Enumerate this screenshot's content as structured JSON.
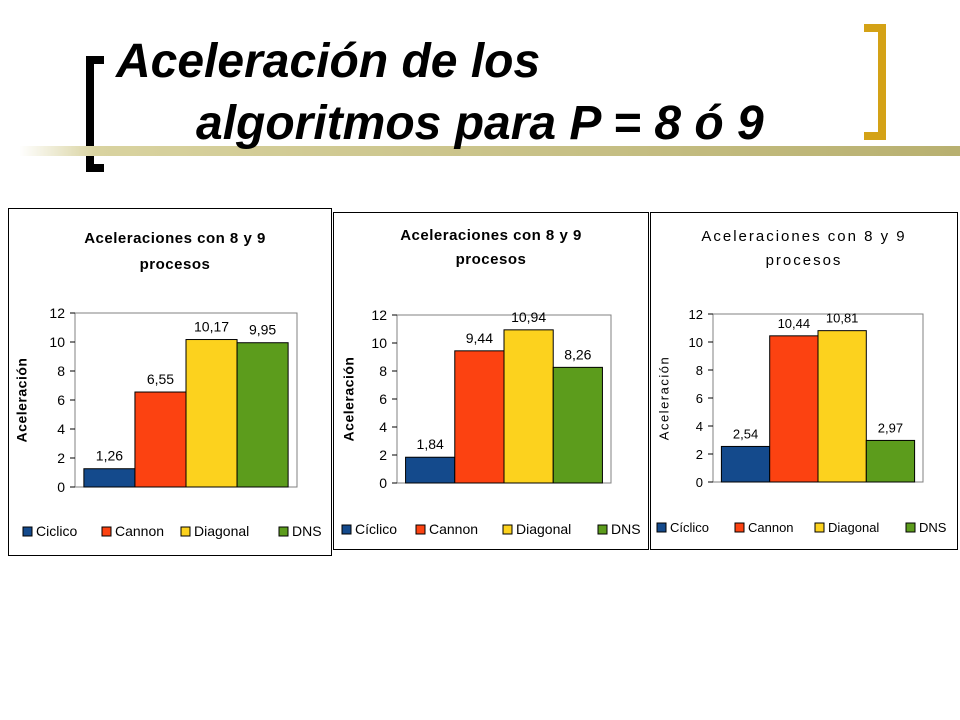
{
  "slide": {
    "title_line1": "Aceleración de los",
    "title_line2": "algoritmos para P = 8 ó 9",
    "accent_color": "#d4a216"
  },
  "series_colors": {
    "Cíclico": "#144a8c",
    "Cannon": "#fc4211",
    "Diagonal": "#fcd21e",
    "DNS": "#5c9c1c"
  },
  "chart_data": [
    {
      "type": "bar",
      "title_lines": [
        "Aceleraciones con 8 y 9",
        "procesos"
      ],
      "ylabel": "Aceleración",
      "xlabel": "",
      "ylim": [
        0,
        12
      ],
      "yticks": [
        "0",
        "2",
        "4",
        "6",
        "8",
        "10",
        "12"
      ],
      "grid": false,
      "legend_position": "bottom",
      "series": [
        {
          "name": "Ciclico",
          "value": 1.26,
          "label": "1,26"
        },
        {
          "name": "Cannon",
          "value": 6.55,
          "label": "6,55"
        },
        {
          "name": "Diagonal",
          "value": 10.17,
          "label": "10,17"
        },
        {
          "name": "DNS",
          "value": 9.95,
          "label": "9,95"
        }
      ]
    },
    {
      "type": "bar",
      "title_lines": [
        "Aceleraciones con 8 y 9",
        "procesos"
      ],
      "ylabel": "Aceleración",
      "xlabel": "",
      "ylim": [
        0,
        12
      ],
      "yticks": [
        "0",
        "2",
        "4",
        "6",
        "8",
        "10",
        "12"
      ],
      "grid": false,
      "legend_position": "bottom",
      "series": [
        {
          "name": "Cíclico",
          "value": 1.84,
          "label": "1,84"
        },
        {
          "name": "Cannon",
          "value": 9.44,
          "label": "9,44"
        },
        {
          "name": "Diagonal",
          "value": 10.94,
          "label": "10,94"
        },
        {
          "name": "DNS",
          "value": 8.26,
          "label": "8,26"
        }
      ]
    },
    {
      "type": "bar",
      "title_lines": [
        "Aceleraciones con 8 y 9",
        "procesos"
      ],
      "ylabel": "Aceleración",
      "xlabel": "",
      "ylim": [
        0,
        12
      ],
      "yticks": [
        "0",
        "2",
        "4",
        "6",
        "8",
        "10",
        "12"
      ],
      "grid": false,
      "legend_position": "bottom",
      "series": [
        {
          "name": "Cíclico",
          "value": 2.54,
          "label": "2,54"
        },
        {
          "name": "Cannon",
          "value": 10.44,
          "label": "10,44"
        },
        {
          "name": "Diagonal",
          "value": 10.81,
          "label": "10,81"
        },
        {
          "name": "DNS",
          "value": 2.97,
          "label": "2,97"
        }
      ]
    }
  ]
}
